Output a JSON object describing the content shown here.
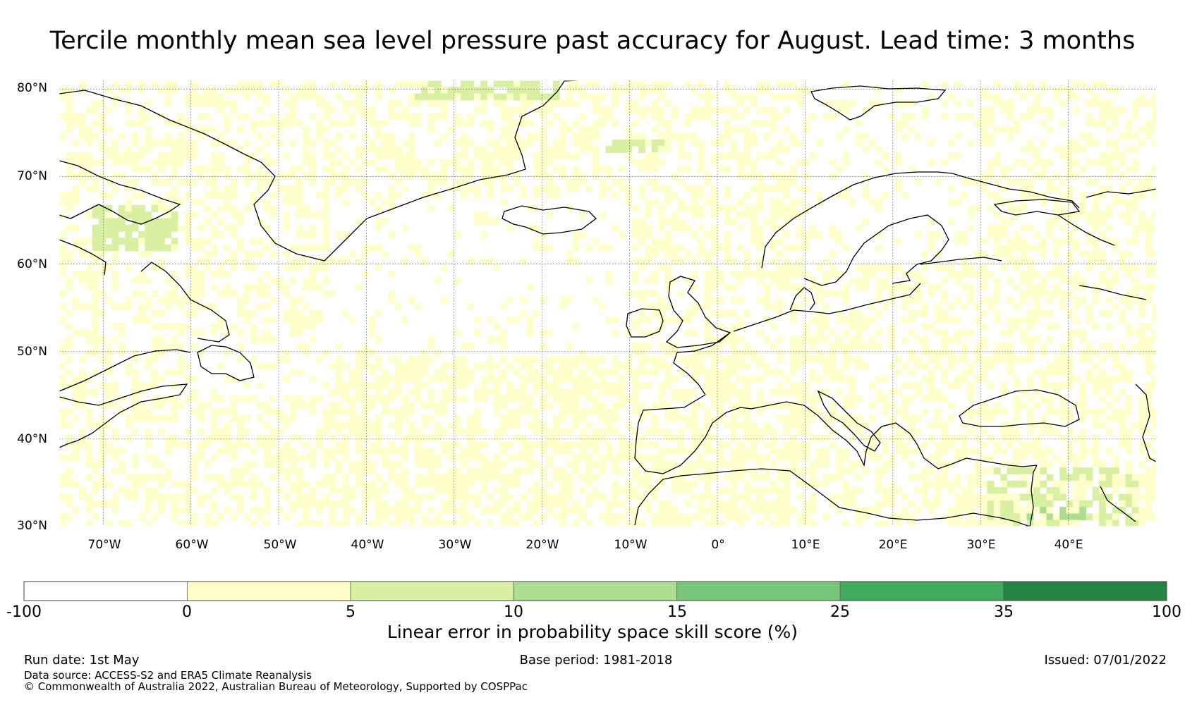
{
  "title": "Tercile monthly mean sea level pressure past accuracy for August. Lead time: 3 months",
  "map": {
    "lat_labels": [
      "80°N",
      "70°N",
      "60°N",
      "50°N",
      "40°N",
      "30°N"
    ],
    "lon_labels": [
      "70°W",
      "60°W",
      "50°W",
      "40°W",
      "30°W",
      "20°W",
      "10°W",
      "0°",
      "10°E",
      "20°E",
      "30°E",
      "40°E"
    ],
    "lat_range": [
      30,
      81
    ],
    "lon_range": [
      -75,
      50
    ],
    "features": [
      "Greenland",
      "Iceland",
      "Scandinavia",
      "British Isles",
      "Iberia",
      "Italy",
      "Mediterranean Sea",
      "Black Sea",
      "Newfoundland",
      "Baffin Island",
      "North Africa"
    ]
  },
  "colorbar": {
    "title": "Linear error in probability space skill score (%)",
    "ticks": [
      "-100",
      "0",
      "5",
      "10",
      "15",
      "25",
      "35",
      "100"
    ],
    "bins": [
      {
        "from": -100,
        "to": 0,
        "color": "#ffffff"
      },
      {
        "from": 0,
        "to": 5,
        "color": "#ffffcc"
      },
      {
        "from": 5,
        "to": 10,
        "color": "#d9f0a3"
      },
      {
        "from": 10,
        "to": 15,
        "color": "#addd8e"
      },
      {
        "from": 15,
        "to": 25,
        "color": "#78c679"
      },
      {
        "from": 25,
        "to": 35,
        "color": "#41ab5d"
      },
      {
        "from": 35,
        "to": 100,
        "color": "#238443"
      }
    ]
  },
  "footer": {
    "run_date": "Run date: 1st May",
    "base_period": "Base period: 1981-2018",
    "issued": "Issued: 07/01/2022",
    "data_source": "Data source: ACCESS-S2 and ERA5 Climate Reanalysis",
    "copyright": "© Commonwealth of Australia 2022, Australian Bureau of Meteorology, Supported by COSPPac"
  }
}
